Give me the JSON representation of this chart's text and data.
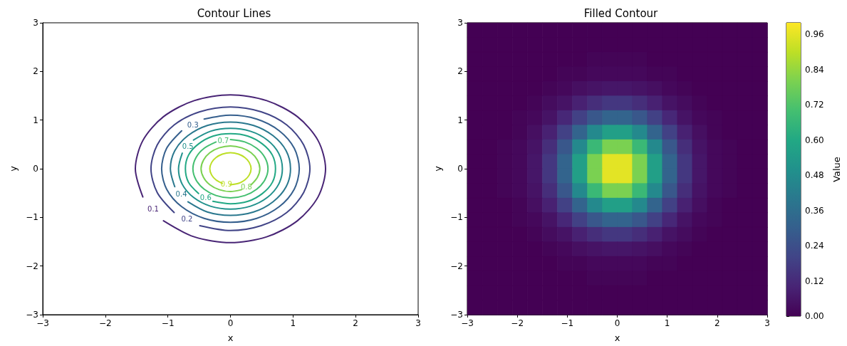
{
  "chart_data": [
    {
      "type": "line",
      "title": "Contour Lines",
      "xlabel": "x",
      "ylabel": "y",
      "xlim": [
        -3,
        3
      ],
      "xticks": [
        {
          "value": -3,
          "label": "−3"
        },
        {
          "value": -2,
          "label": "−2"
        },
        {
          "value": -1,
          "label": "−1"
        },
        0,
        1,
        2,
        3
      ],
      "ylim": [
        -3,
        3
      ],
      "yticks": [
        {
          "value": -3,
          "label": "−3"
        },
        {
          "value": -2,
          "label": "−2"
        },
        {
          "value": -1,
          "label": "−1"
        },
        0,
        1,
        2,
        3
      ],
      "series": [
        {
          "name": "0.1",
          "color": "#482475",
          "x": [
            -1.07,
            -0.58,
            0,
            0.58,
            1.07,
            1.4,
            1.52,
            1.4,
            1.07,
            0.58,
            0,
            -0.58,
            -1.07,
            -1.4,
            -1.52,
            -1.4
          ],
          "values": [
            -1.07,
            -1.4,
            -1.52,
            -1.4,
            -1.07,
            -0.58,
            0,
            0.58,
            1.07,
            1.4,
            1.52,
            1.4,
            1.07,
            0.58,
            0,
            -0.58
          ]
        },
        {
          "name": "0.2",
          "color": "#414487",
          "x": [
            -0.49,
            0,
            0.49,
            0.9,
            1.17,
            1.27,
            1.17,
            0.9,
            0.49,
            0,
            -0.49,
            -0.9,
            -1.17,
            -1.27,
            -1.17,
            -0.9
          ],
          "values": [
            -1.17,
            -1.27,
            -1.17,
            -0.9,
            -0.49,
            0,
            0.49,
            0.9,
            1.17,
            1.27,
            1.17,
            0.9,
            0.49,
            0,
            -0.49,
            -0.9
          ]
        },
        {
          "name": "0.3",
          "color": "#355f8d",
          "x": [
            -0.78,
            -1.02,
            -1.1,
            -1.02,
            -0.78,
            -0.42,
            0,
            0.42,
            0.78,
            1.02,
            1.1,
            1.02,
            0.78,
            0.42,
            0,
            -0.42
          ],
          "values": [
            0.78,
            0.42,
            0,
            -0.42,
            -0.78,
            -1.02,
            -1.1,
            -1.02,
            -0.78,
            -0.42,
            0,
            0.42,
            0.78,
            1.02,
            1.1,
            1.02
          ]
        },
        {
          "name": "0.4",
          "color": "#2a788e",
          "x": [
            -0.68,
            -0.37,
            0,
            0.37,
            0.68,
            0.89,
            0.96,
            0.89,
            0.68,
            0.37,
            0,
            -0.37,
            -0.68,
            -0.89,
            -0.96,
            -0.89
          ],
          "values": [
            -0.68,
            -0.89,
            -0.96,
            -0.89,
            -0.68,
            -0.37,
            0,
            0.37,
            0.68,
            0.89,
            0.96,
            0.89,
            0.68,
            0.37,
            0,
            -0.37
          ]
        },
        {
          "name": "0.5",
          "color": "#21918c",
          "x": [
            -0.77,
            -0.83,
            -0.77,
            -0.59,
            -0.32,
            0,
            0.32,
            0.59,
            0.77,
            0.83,
            0.77,
            0.59,
            0.32,
            0,
            -0.32,
            -0.59
          ],
          "values": [
            0.32,
            0,
            -0.32,
            -0.59,
            -0.77,
            -0.83,
            -0.77,
            -0.59,
            -0.32,
            0,
            0.32,
            0.59,
            0.77,
            0.83,
            0.77,
            0.59
          ]
        },
        {
          "name": "0.6",
          "color": "#22a884",
          "x": [
            -0.28,
            0,
            0.28,
            0.51,
            0.67,
            0.72,
            0.67,
            0.51,
            0.28,
            0,
            -0.28,
            -0.51,
            -0.67,
            -0.72,
            -0.67,
            -0.51
          ],
          "values": [
            -0.67,
            -0.72,
            -0.67,
            -0.51,
            -0.28,
            0,
            0.28,
            0.51,
            0.67,
            0.72,
            0.67,
            0.51,
            0.28,
            0,
            -0.28,
            -0.51
          ]
        },
        {
          "name": "0.7",
          "color": "#44bf70",
          "x": [
            -0.23,
            -0.42,
            -0.55,
            -0.6,
            -0.55,
            -0.42,
            -0.23,
            0,
            0.23,
            0.42,
            0.55,
            0.6,
            0.55,
            0.42,
            0.23,
            0
          ],
          "values": [
            0.55,
            0.42,
            0.23,
            0,
            -0.23,
            -0.42,
            -0.55,
            -0.6,
            -0.55,
            -0.42,
            -0.23,
            0,
            0.23,
            0.42,
            0.55,
            0.6
          ]
        },
        {
          "name": "0.8",
          "color": "#7ad151",
          "x": [
            0.33,
            0.43,
            0.47,
            0.43,
            0.33,
            0.18,
            0,
            -0.18,
            -0.33,
            -0.43,
            -0.47,
            -0.43,
            -0.33,
            -0.18,
            0,
            0.18
          ],
          "values": [
            -0.33,
            -0.18,
            0,
            0.18,
            0.33,
            0.43,
            0.47,
            0.43,
            0.33,
            0.18,
            0,
            -0.18,
            -0.33,
            -0.43,
            -0.47,
            -0.43
          ]
        },
        {
          "name": "0.9",
          "color": "#bddf26",
          "x": [
            0,
            0.13,
            0.23,
            0.3,
            0.33,
            0.3,
            0.23,
            0.13,
            0,
            -0.13,
            -0.23,
            -0.3,
            -0.33,
            -0.3,
            -0.23,
            -0.13
          ],
          "values": [
            -0.33,
            -0.3,
            -0.23,
            -0.13,
            0,
            0.13,
            0.23,
            0.3,
            0.33,
            0.3,
            0.23,
            0.13,
            0,
            -0.13,
            -0.23,
            -0.3
          ]
        }
      ]
    },
    {
      "type": "heatmap",
      "title": "Filled Contour",
      "xlabel": "x",
      "ylabel": "y",
      "clabel": "Value",
      "xlim": [
        -3,
        3
      ],
      "xticks": [
        {
          "value": -3,
          "label": "−3"
        },
        {
          "value": -2,
          "label": "−2"
        },
        {
          "value": -1,
          "label": "−1"
        },
        0,
        1,
        2,
        3
      ],
      "ylim": [
        -3,
        3
      ],
      "yticks": [
        {
          "value": -3,
          "label": "−3"
        },
        {
          "value": -2,
          "label": "−2"
        },
        {
          "value": -1,
          "label": "−1"
        },
        0,
        1,
        2,
        3
      ],
      "clim": [
        0,
        1
      ],
      "cticks": [
        {
          "value": 0,
          "label": "0.00"
        },
        {
          "value": 0.12,
          "label": "0.12"
        },
        {
          "value": 0.24,
          "label": "0.24"
        },
        {
          "value": 0.36,
          "label": "0.36"
        },
        {
          "value": 0.48,
          "label": "0.48"
        },
        {
          "value": 0.6,
          "label": "0.60"
        },
        {
          "value": 0.72,
          "label": "0.72"
        },
        {
          "value": 0.84,
          "label": "0.84"
        },
        {
          "value": 0.96,
          "label": "0.96"
        }
      ],
      "x": [
        -2.85,
        -2.55,
        -2.25,
        -1.95,
        -1.65,
        -1.35,
        -1.05,
        -0.75,
        -0.45,
        -0.15,
        0.15,
        0.45,
        0.75,
        1.05,
        1.35,
        1.65,
        1.95,
        2.25,
        2.55,
        2.85
      ],
      "y": [
        2.85,
        2.55,
        2.25,
        1.95,
        1.65,
        1.35,
        1.05,
        0.75,
        0.45,
        0.15,
        -0.15,
        -0.45,
        -0.75,
        -1.05,
        -1.35,
        -1.65,
        -1.95,
        -2.25,
        -2.55,
        -2.85
      ],
      "cells": [
        [
          0,
          0,
          0,
          0,
          0,
          0,
          0,
          0,
          0,
          0,
          0,
          0,
          0,
          0,
          0,
          0,
          0,
          0,
          0,
          0
        ],
        [
          0,
          0,
          0,
          0,
          0,
          0,
          0,
          0,
          0,
          0,
          0,
          0,
          0,
          0,
          0,
          0,
          0,
          0,
          0,
          0
        ],
        [
          0,
          0,
          0,
          0,
          0,
          0,
          0,
          0,
          0.01,
          0.01,
          0.01,
          0.01,
          0,
          0,
          0,
          0,
          0,
          0,
          0,
          0
        ],
        [
          0,
          0,
          0,
          0,
          0,
          0,
          0.01,
          0.01,
          0.02,
          0.02,
          0.02,
          0.02,
          0.01,
          0.01,
          0,
          0,
          0,
          0,
          0,
          0
        ],
        [
          0,
          0,
          0,
          0,
          0,
          0.01,
          0.02,
          0.04,
          0.05,
          0.06,
          0.06,
          0.05,
          0.04,
          0.02,
          0.01,
          0,
          0,
          0,
          0,
          0
        ],
        [
          0,
          0,
          0,
          0,
          0.01,
          0.03,
          0.05,
          0.09,
          0.13,
          0.16,
          0.16,
          0.13,
          0.09,
          0.05,
          0.03,
          0.01,
          0,
          0,
          0,
          0
        ],
        [
          0,
          0,
          0,
          0.01,
          0.02,
          0.05,
          0.11,
          0.19,
          0.27,
          0.32,
          0.32,
          0.27,
          0.19,
          0.11,
          0.05,
          0.02,
          0.01,
          0,
          0,
          0
        ],
        [
          0,
          0,
          0,
          0.01,
          0.04,
          0.09,
          0.19,
          0.32,
          0.47,
          0.56,
          0.56,
          0.47,
          0.32,
          0.19,
          0.09,
          0.04,
          0.01,
          0,
          0,
          0
        ],
        [
          0,
          0,
          0.01,
          0.02,
          0.05,
          0.13,
          0.27,
          0.47,
          0.67,
          0.8,
          0.8,
          0.67,
          0.47,
          0.27,
          0.13,
          0.05,
          0.02,
          0.01,
          0,
          0
        ],
        [
          0,
          0,
          0.01,
          0.02,
          0.06,
          0.16,
          0.32,
          0.56,
          0.8,
          0.96,
          0.96,
          0.8,
          0.56,
          0.32,
          0.16,
          0.06,
          0.02,
          0.01,
          0,
          0
        ],
        [
          0,
          0,
          0.01,
          0.02,
          0.06,
          0.16,
          0.32,
          0.56,
          0.8,
          0.96,
          0.96,
          0.8,
          0.56,
          0.32,
          0.16,
          0.06,
          0.02,
          0.01,
          0,
          0
        ],
        [
          0,
          0,
          0.01,
          0.02,
          0.05,
          0.13,
          0.27,
          0.47,
          0.67,
          0.8,
          0.8,
          0.67,
          0.47,
          0.27,
          0.13,
          0.05,
          0.02,
          0.01,
          0,
          0
        ],
        [
          0,
          0,
          0,
          0.01,
          0.04,
          0.09,
          0.19,
          0.32,
          0.47,
          0.56,
          0.56,
          0.47,
          0.32,
          0.19,
          0.09,
          0.04,
          0.01,
          0,
          0,
          0
        ],
        [
          0,
          0,
          0,
          0.01,
          0.02,
          0.05,
          0.11,
          0.19,
          0.27,
          0.32,
          0.32,
          0.27,
          0.19,
          0.11,
          0.05,
          0.02,
          0.01,
          0,
          0,
          0
        ],
        [
          0,
          0,
          0,
          0,
          0.01,
          0.03,
          0.05,
          0.09,
          0.13,
          0.16,
          0.16,
          0.13,
          0.09,
          0.05,
          0.03,
          0.01,
          0,
          0,
          0,
          0
        ],
        [
          0,
          0,
          0,
          0,
          0,
          0.01,
          0.02,
          0.04,
          0.05,
          0.06,
          0.06,
          0.05,
          0.04,
          0.02,
          0.01,
          0,
          0,
          0,
          0,
          0
        ],
        [
          0,
          0,
          0,
          0,
          0,
          0,
          0.01,
          0.01,
          0.02,
          0.02,
          0.02,
          0.02,
          0.01,
          0.01,
          0,
          0,
          0,
          0,
          0,
          0
        ],
        [
          0,
          0,
          0,
          0,
          0,
          0,
          0,
          0,
          0.01,
          0.01,
          0.01,
          0.01,
          0,
          0,
          0,
          0,
          0,
          0,
          0,
          0
        ],
        [
          0,
          0,
          0,
          0,
          0,
          0,
          0,
          0,
          0,
          0,
          0,
          0,
          0,
          0,
          0,
          0,
          0,
          0,
          0,
          0
        ],
        [
          0,
          0,
          0,
          0,
          0,
          0,
          0,
          0,
          0,
          0,
          0,
          0,
          0,
          0,
          0,
          0,
          0,
          0,
          0,
          0
        ]
      ]
    }
  ]
}
